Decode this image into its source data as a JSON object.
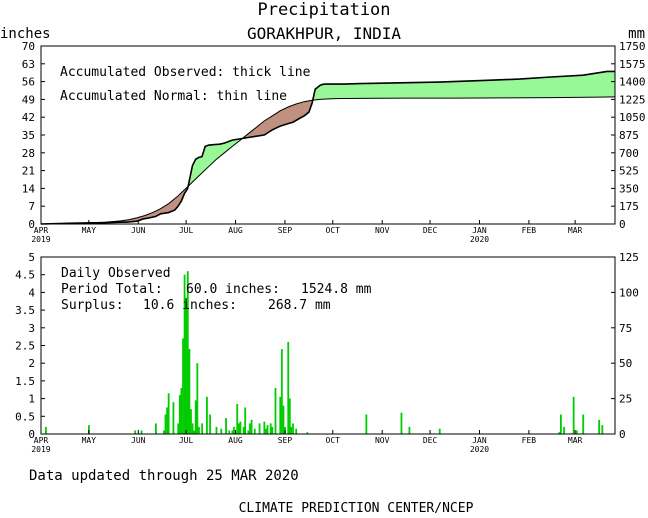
{
  "chart_data": [
    {
      "type": "area",
      "title": "Precipitation",
      "subtitle": "GORAKHPUR, INDIA",
      "ylabel_left": "inches",
      "ylabel_right": "mm",
      "ylim": [
        0,
        70
      ],
      "yticks_left": [
        0,
        7,
        14,
        21,
        28,
        35,
        42,
        49,
        56,
        63,
        70
      ],
      "ylim_right": [
        0,
        1750
      ],
      "yticks_right": [
        0,
        175,
        350,
        525,
        700,
        875,
        1050,
        1225,
        1400,
        1575,
        1750
      ],
      "month_ticks": [
        "APR",
        "MAY",
        "JUN",
        "JUL",
        "AUG",
        "SEP",
        "OCT",
        "NOV",
        "DEC",
        "JAN",
        "FEB",
        "MAR"
      ],
      "year_ticks": [
        {
          "month": "APR",
          "year": "2019"
        },
        {
          "month": "JAN",
          "year": "2020"
        }
      ],
      "legend": [
        "Accumulated Observed: thick line",
        "Accumulated Normal: thin line"
      ],
      "surplus_color": "#98f898",
      "deficit_color": "#c09080",
      "series": [
        {
          "name": "Accumulated Observed",
          "x": [
            0,
            20,
            40,
            50,
            55,
            60,
            62,
            64,
            68,
            72,
            75,
            80,
            84,
            86,
            88,
            90,
            92,
            94,
            95,
            97,
            99,
            101,
            103,
            105,
            108,
            112,
            115,
            120,
            130,
            140,
            145,
            150,
            155,
            158,
            162,
            165,
            168,
            170,
            172,
            175,
            176,
            178,
            180,
            181,
            184,
            187,
            190,
            200,
            250,
            280,
            300,
            320,
            340,
            350,
            355,
            360
          ],
          "values": [
            0,
            0.3,
            0.5,
            0.7,
            0.8,
            1.1,
            1.5,
            2.0,
            2.4,
            3.0,
            4.0,
            4.5,
            5.5,
            7.0,
            9.0,
            12.0,
            14.0,
            20.0,
            23.0,
            25.5,
            26.2,
            26.5,
            30.5,
            31.0,
            31.2,
            31.4,
            31.8,
            33.0,
            34.0,
            35.0,
            37.0,
            38.5,
            39.5,
            40.0,
            41.5,
            42.5,
            44.0,
            47.5,
            53.0,
            54.5,
            54.8,
            55.0,
            55.0,
            55.0,
            55.0,
            55.0,
            55.0,
            55.2,
            55.8,
            56.5,
            57.0,
            57.8,
            58.5,
            59.5,
            60.0,
            60.0
          ]
        },
        {
          "name": "Accumulated Normal",
          "x": [
            0,
            20,
            40,
            50,
            55,
            60,
            65,
            70,
            75,
            80,
            85,
            90,
            95,
            100,
            105,
            110,
            115,
            120,
            125,
            130,
            135,
            140,
            145,
            150,
            155,
            160,
            165,
            170,
            175,
            180,
            185,
            190,
            200,
            210,
            230,
            260,
            290,
            320,
            350,
            360
          ],
          "values": [
            0,
            0.3,
            0.7,
            1.2,
            1.7,
            2.4,
            3.3,
            4.5,
            6.0,
            8.0,
            10.5,
            13.5,
            16.5,
            19.5,
            22.5,
            25.5,
            28.0,
            30.5,
            33.0,
            35.5,
            38.0,
            40.5,
            42.5,
            44.5,
            46.0,
            47.2,
            48.1,
            48.7,
            49.0,
            49.2,
            49.3,
            49.35,
            49.4,
            49.45,
            49.5,
            49.5,
            49.6,
            49.7,
            49.9,
            50.0
          ]
        }
      ]
    },
    {
      "type": "bar",
      "ylim": [
        0,
        5
      ],
      "yticks_left": [
        0,
        0.5,
        1,
        1.5,
        2,
        2.5,
        3,
        3.5,
        4,
        4.5,
        5
      ],
      "ylim_right": [
        0,
        125
      ],
      "yticks_right": [
        0,
        25,
        50,
        75,
        100,
        125
      ],
      "month_ticks": [
        "APR",
        "MAY",
        "JUN",
        "JUL",
        "AUG",
        "SEP",
        "OCT",
        "NOV",
        "DEC",
        "JAN",
        "FEB",
        "MAR"
      ],
      "year_ticks": [
        {
          "month": "APR",
          "year": "2019"
        },
        {
          "month": "JAN",
          "year": "2020"
        }
      ],
      "bar_color": "#00cc00",
      "annotations": {
        "heading": "Daily Observed",
        "line1_label": "Period Total:",
        "line1_inches": "60.0 inches:",
        "line1_mm": "1524.8 mm",
        "line2_label": "Surplus:",
        "line2_inches": "10.6 inches:",
        "line2_mm": "268.7 mm"
      },
      "x": [
        3,
        30,
        59,
        63,
        72,
        77,
        78,
        79,
        80,
        83,
        86,
        87,
        88,
        89,
        90,
        91,
        92,
        93,
        94,
        95,
        96,
        97,
        98,
        99,
        101,
        104,
        106,
        110,
        113,
        116,
        118,
        120,
        121,
        123,
        124,
        125,
        127,
        128,
        130,
        131,
        132,
        134,
        137,
        140,
        141,
        142,
        144,
        145,
        147,
        150,
        151,
        152,
        153,
        155,
        156,
        157,
        158,
        160,
        167,
        204,
        226,
        231,
        250,
        325,
        326,
        328,
        334,
        336,
        340,
        350,
        352
      ],
      "values": [
        0.2,
        0.25,
        0.1,
        0.1,
        0.3,
        0.1,
        0.55,
        0.75,
        1.15,
        0.9,
        0.3,
        1.1,
        1.3,
        2.7,
        4.5,
        3.85,
        4.6,
        2.4,
        0.7,
        0.3,
        0.1,
        0.95,
        2.0,
        0.2,
        0.3,
        1.05,
        0.55,
        0.2,
        0.15,
        0.45,
        0.1,
        0.1,
        0.2,
        0.85,
        0.3,
        0.35,
        0.2,
        0.75,
        0.1,
        0.3,
        0.4,
        0.15,
        0.3,
        0.35,
        0.15,
        0.25,
        0.3,
        0.2,
        1.3,
        1.05,
        2.4,
        0.8,
        0.2,
        2.6,
        1.0,
        0.2,
        0.3,
        0.15,
        0.05,
        0.55,
        0.6,
        0.2,
        0.15,
        0.05,
        0.55,
        0.2,
        1.05,
        0.1,
        0.55,
        0.4,
        0.25
      ]
    }
  ],
  "footer": {
    "updated": "Data updated through 25 MAR 2020",
    "credit": "CLIMATE PREDICTION CENTER/NCEP"
  }
}
